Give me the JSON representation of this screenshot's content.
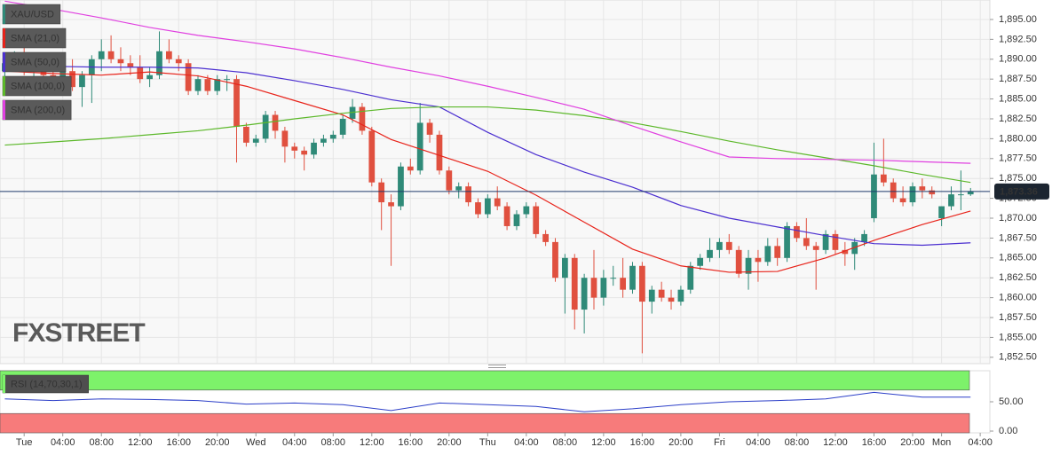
{
  "chart_data": [
    {
      "type": "candlestick",
      "symbol": "XAU/USD",
      "watermark": "FXSTREET",
      "up_color": "#2f8a78",
      "down_color": "#e0503f",
      "open": [
        1888.5,
        1889.5,
        1890.5,
        1888.5,
        1889,
        1888,
        1887,
        1888.5,
        1886.5,
        1888,
        1890,
        1891,
        1890,
        1889.5,
        1889,
        1887.5,
        1888,
        1891,
        1890,
        1889.5,
        1886,
        1887.5,
        1886,
        1887.5,
        1887.5,
        1881.5,
        1879.5,
        1880,
        1883,
        1881,
        1879,
        1878.5,
        1878,
        1879.5,
        1880,
        1880.5,
        1882.5,
        1884,
        1881,
        1874.5,
        1872,
        1871.5,
        1876.5,
        1876,
        1882,
        1880.5,
        1876,
        1873.5,
        1874,
        1872,
        1870.5,
        1872.5,
        1871.5,
        1869,
        1870.5,
        1871.5,
        1868,
        1867,
        1862.5,
        1865,
        1858.5,
        1862.5,
        1860,
        1862.5,
        1862.5,
        1861,
        1864,
        1859.5,
        1861,
        1860,
        1859.5,
        1861,
        1864,
        1865,
        1866,
        1867,
        1866,
        1863,
        1865,
        1864.5,
        1866.5,
        1865,
        1869,
        1867.5,
        1866.5,
        1866,
        1868,
        1866,
        1865.5,
        1867,
        1870,
        1875.5,
        1874.5,
        1872.5,
        1872,
        1874,
        1873.5,
        1870,
        1871.5,
        1873,
        1873
      ],
      "high": [
        1890.5,
        1891,
        1891.5,
        1890,
        1890.5,
        1889,
        1889,
        1890,
        1888.5,
        1890.5,
        1892.5,
        1893,
        1891.5,
        1890.5,
        1890.5,
        1889,
        1893.5,
        1892.5,
        1890.5,
        1890,
        1888,
        1888,
        1888,
        1888,
        1888,
        1882,
        1880.5,
        1883.5,
        1883.5,
        1881.5,
        1879.5,
        1879,
        1880,
        1880.5,
        1881,
        1883,
        1885,
        1884.5,
        1881.5,
        1875,
        1873,
        1877,
        1877.5,
        1884.5,
        1882.5,
        1881,
        1876.5,
        1874.5,
        1874.5,
        1872.5,
        1873,
        1874,
        1872,
        1871,
        1872,
        1872,
        1868.5,
        1867.5,
        1865.5,
        1865.5,
        1863,
        1866,
        1863.5,
        1864,
        1865,
        1864.5,
        1864.5,
        1861.5,
        1862,
        1861,
        1861.5,
        1864.5,
        1865.5,
        1867.5,
        1867.5,
        1868,
        1866.5,
        1866,
        1866,
        1867.5,
        1867.5,
        1869.5,
        1869.5,
        1870,
        1867,
        1868.5,
        1868.5,
        1867,
        1867.5,
        1868.5,
        1879.5,
        1880,
        1875,
        1874,
        1874.5,
        1875,
        1874,
        1871.5,
        1874,
        1876,
        1873.8
      ],
      "low": [
        1887.5,
        1888.5,
        1888,
        1887,
        1887.5,
        1886,
        1885.5,
        1886,
        1884,
        1884.5,
        1888.5,
        1889.5,
        1888.5,
        1888,
        1887,
        1886.5,
        1887.5,
        1889.5,
        1888.5,
        1885.5,
        1885.5,
        1885.5,
        1885.5,
        1886,
        1877,
        1879,
        1879,
        1879.5,
        1880,
        1877,
        1877.5,
        1876,
        1877.5,
        1879,
        1879.5,
        1880,
        1882,
        1880.5,
        1874,
        1868.5,
        1864,
        1871,
        1875.5,
        1875.5,
        1879.5,
        1875.5,
        1873,
        1872.5,
        1871.5,
        1870,
        1870,
        1871,
        1868.5,
        1868.5,
        1870,
        1867.5,
        1866.5,
        1862,
        1858,
        1856,
        1855.5,
        1858.5,
        1859,
        1861.5,
        1860,
        1860.5,
        1853,
        1858,
        1859.5,
        1858.5,
        1859,
        1860.5,
        1863.5,
        1864.5,
        1865,
        1865.5,
        1862.5,
        1861,
        1862,
        1864,
        1864,
        1864.5,
        1867,
        1866,
        1861,
        1865.5,
        1865.5,
        1864,
        1863.5,
        1866.5,
        1869.5,
        1874,
        1872,
        1871.5,
        1871.5,
        1872.5,
        1872.5,
        1869,
        1871,
        1871,
        1872.8
      ],
      "close": [
        1889.5,
        1890.5,
        1888.5,
        1889,
        1888,
        1887,
        1888.5,
        1886.5,
        1888,
        1890,
        1891,
        1890,
        1889.5,
        1889,
        1887.5,
        1888,
        1891,
        1890,
        1889.5,
        1886,
        1887.5,
        1886,
        1887.5,
        1887.5,
        1881.5,
        1879.5,
        1880,
        1883,
        1881,
        1879,
        1878.5,
        1878,
        1879.5,
        1880,
        1880.5,
        1882.5,
        1884,
        1881,
        1874.5,
        1872,
        1871.5,
        1876.5,
        1876,
        1882,
        1880.5,
        1876,
        1873.5,
        1874,
        1872,
        1870.5,
        1872.5,
        1871.5,
        1869,
        1870.5,
        1871.5,
        1868,
        1867,
        1862.5,
        1865,
        1858.5,
        1862.5,
        1860,
        1862.5,
        1862.5,
        1861,
        1864,
        1859.5,
        1861,
        1860,
        1859.5,
        1861,
        1864,
        1865,
        1866,
        1867,
        1866,
        1863,
        1865,
        1864.5,
        1866.5,
        1865,
        1869,
        1867.5,
        1866.5,
        1866,
        1868,
        1866,
        1865.5,
        1867,
        1868,
        1875.5,
        1874.5,
        1872.5,
        1872,
        1874,
        1873.5,
        1873,
        1871.5,
        1873,
        1873,
        1873.36
      ],
      "last_price": {
        "value": 1873.36,
        "label": "1,873.36"
      },
      "xlim": [
        -0.5,
        102
      ],
      "ylim": [
        1851.7,
        1897.45
      ],
      "yticks": [
        {
          "value": 1852.5,
          "label": "1,852.50"
        },
        {
          "value": 1855,
          "label": "1,855.00"
        },
        {
          "value": 1857.5,
          "label": "1,857.50"
        },
        {
          "value": 1860,
          "label": "1,860.00"
        },
        {
          "value": 1862.5,
          "label": "1,862.50"
        },
        {
          "value": 1865,
          "label": "1,865.00"
        },
        {
          "value": 1867.5,
          "label": "1,867.50"
        },
        {
          "value": 1870,
          "label": "1,870.00"
        },
        {
          "value": 1872.5,
          "label": "1,872.50"
        },
        {
          "value": 1875,
          "label": "1,875.00"
        },
        {
          "value": 1877.5,
          "label": "1,877.50"
        },
        {
          "value": 1880,
          "label": "1,880.00"
        },
        {
          "value": 1882.5,
          "label": "1,882.50"
        },
        {
          "value": 1885,
          "label": "1,885.00"
        },
        {
          "value": 1887.5,
          "label": "1,887.50"
        },
        {
          "value": 1890,
          "label": "1,890.00"
        },
        {
          "value": 1892.5,
          "label": "1,892.50"
        },
        {
          "value": 1895,
          "label": "1,895.00"
        }
      ],
      "grid": true,
      "series": [
        {
          "name": "SMA (21,0)",
          "color": "#e8231a",
          "x": [
            0,
            5,
            10,
            15,
            20,
            25,
            30,
            35,
            40,
            45,
            50,
            55,
            60,
            65,
            70,
            75,
            80,
            85,
            90,
            95,
            100
          ],
          "values": [
            1888.5,
            1888.2,
            1888.0,
            1888.4,
            1887.9,
            1886.6,
            1884.8,
            1883.0,
            1879.9,
            1877.9,
            1875.9,
            1872.9,
            1869.5,
            1866.1,
            1864.0,
            1863.2,
            1863.3,
            1865.0,
            1867.2,
            1869.2,
            1870.9
          ]
        },
        {
          "name": "SMA (50,0)",
          "color": "#4b2fd0",
          "x": [
            0,
            5,
            10,
            15,
            20,
            25,
            30,
            35,
            40,
            45,
            50,
            55,
            60,
            65,
            70,
            75,
            80,
            85,
            90,
            95,
            100
          ],
          "values": [
            1889.4,
            1889.1,
            1889.0,
            1889.0,
            1888.9,
            1888.3,
            1887.3,
            1886.2,
            1884.9,
            1884.0,
            1880.8,
            1878.0,
            1875.8,
            1873.9,
            1871.6,
            1870.0,
            1868.9,
            1867.8,
            1866.8,
            1866.6,
            1866.9
          ]
        },
        {
          "name": "SMA (100,0)",
          "color": "#5cb82a",
          "x": [
            0,
            5,
            10,
            15,
            20,
            25,
            30,
            35,
            40,
            45,
            50,
            55,
            60,
            65,
            70,
            75,
            80,
            85,
            90,
            95,
            100
          ],
          "values": [
            1879.2,
            1879.6,
            1880.0,
            1880.5,
            1881.0,
            1881.7,
            1882.5,
            1883.2,
            1883.8,
            1884.0,
            1884.0,
            1883.6,
            1882.9,
            1882.0,
            1880.9,
            1879.7,
            1878.6,
            1877.6,
            1876.6,
            1875.5,
            1874.5
          ]
        },
        {
          "name": "SMA (200,0)",
          "color": "#e040e0",
          "x": [
            0,
            5,
            10,
            15,
            20,
            25,
            30,
            35,
            40,
            45,
            50,
            55,
            60,
            65,
            70,
            75,
            80,
            85,
            90,
            95,
            100
          ],
          "values": [
            1897.3,
            1896.3,
            1895.2,
            1894.0,
            1893.0,
            1892.2,
            1891.3,
            1890.2,
            1889.0,
            1887.9,
            1886.6,
            1885.2,
            1883.7,
            1881.6,
            1879.6,
            1877.7,
            1877.5,
            1877.4,
            1877.3,
            1877.1,
            1876.9
          ]
        }
      ]
    },
    {
      "type": "line",
      "xlim": [
        -0.5,
        102
      ],
      "xticks": [
        {
          "value": 2,
          "label": "Tue"
        },
        {
          "value": 6,
          "label": "04:00"
        },
        {
          "value": 10,
          "label": "08:00"
        },
        {
          "value": 14,
          "label": "12:00"
        },
        {
          "value": 18,
          "label": "16:00"
        },
        {
          "value": 22,
          "label": "20:00"
        },
        {
          "value": 26,
          "label": "Wed"
        },
        {
          "value": 30,
          "label": "04:00"
        },
        {
          "value": 34,
          "label": "08:00"
        },
        {
          "value": 38,
          "label": "12:00"
        },
        {
          "value": 42,
          "label": "16:00"
        },
        {
          "value": 46,
          "label": "20:00"
        },
        {
          "value": 50,
          "label": "Thu"
        },
        {
          "value": 54,
          "label": "04:00"
        },
        {
          "value": 58,
          "label": "08:00"
        },
        {
          "value": 62,
          "label": "12:00"
        },
        {
          "value": 66,
          "label": "16:00"
        },
        {
          "value": 70,
          "label": "20:00"
        },
        {
          "value": 74,
          "label": "Fri"
        },
        {
          "value": 78,
          "label": "04:00"
        },
        {
          "value": 82,
          "label": "08:00"
        },
        {
          "value": 86,
          "label": "12:00"
        },
        {
          "value": 90,
          "label": "16:00"
        },
        {
          "value": 94,
          "label": "20:00"
        },
        {
          "value": 97,
          "label": "Mon"
        },
        {
          "value": 101,
          "label": "04:00"
        }
      ],
      "ylim": [
        -3,
        103
      ],
      "yticks": [
        {
          "value": 0,
          "label": "0.00"
        },
        {
          "value": 50,
          "label": "50.00"
        }
      ],
      "overbought": 70,
      "oversold": 30,
      "overbought_color": "#7df26a",
      "oversold_color": "#f77b7b",
      "series": [
        {
          "name": "RSI (14,70,30,1)",
          "color": "#2c3fc8",
          "x": [
            0,
            5,
            10,
            15,
            20,
            25,
            30,
            35,
            40,
            45,
            50,
            55,
            60,
            65,
            70,
            75,
            80,
            85,
            90,
            95,
            100
          ],
          "values": [
            55,
            52,
            55,
            54,
            52,
            46,
            48,
            45,
            35,
            48,
            45,
            42,
            33,
            38,
            45,
            50,
            52,
            55,
            66,
            58,
            58
          ]
        }
      ]
    }
  ]
}
